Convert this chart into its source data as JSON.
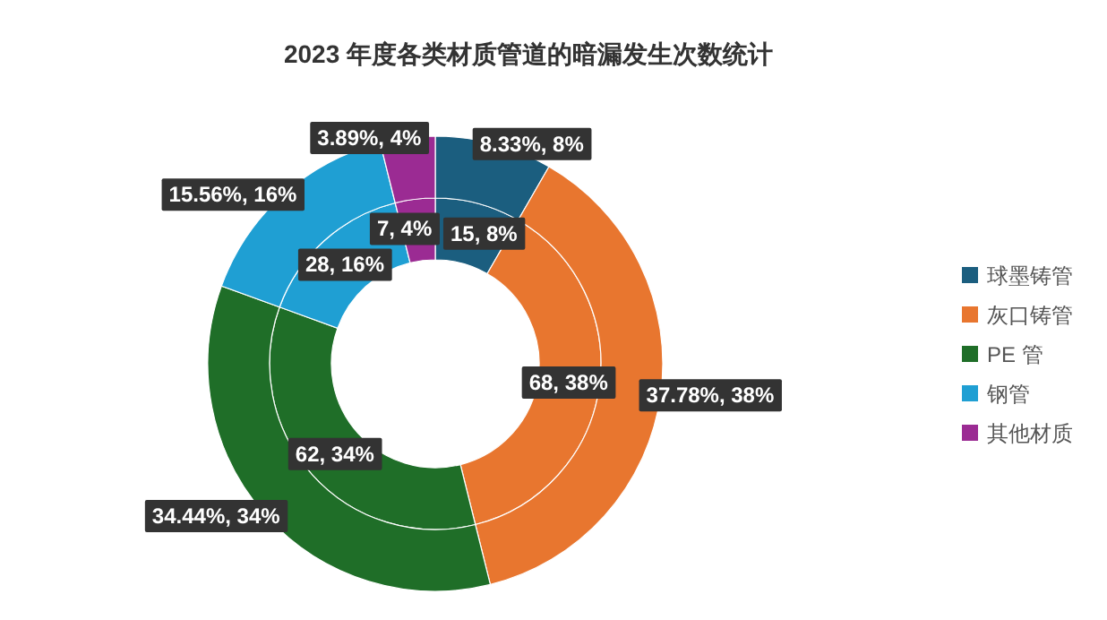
{
  "chart_data": {
    "type": "donut",
    "title": "2023 年度各类材质管道的暗漏发生次数统计",
    "categories": [
      "球墨铸管",
      "灰口铸管",
      "PE 管",
      "钢管",
      "其他材质"
    ],
    "colors": [
      "#1b5e7f",
      "#e8762f",
      "#1f6e28",
      "#1f9fd3",
      "#9b2b93"
    ],
    "series": [
      {
        "values": [
          15,
          68,
          62,
          28,
          7
        ],
        "value_labels": [
          "15, 8%",
          "68, 38%",
          "62, 34%",
          "28, 16%",
          "7, 4%"
        ]
      },
      {
        "values": [
          8.33,
          37.78,
          34.44,
          15.56,
          3.89
        ],
        "value_labels": [
          "8.33%, 8%",
          "37.78%, 38%",
          "34.44%, 34%",
          "15.56%, 16%",
          "3.89%, 4%"
        ]
      }
    ],
    "legend": "right"
  }
}
